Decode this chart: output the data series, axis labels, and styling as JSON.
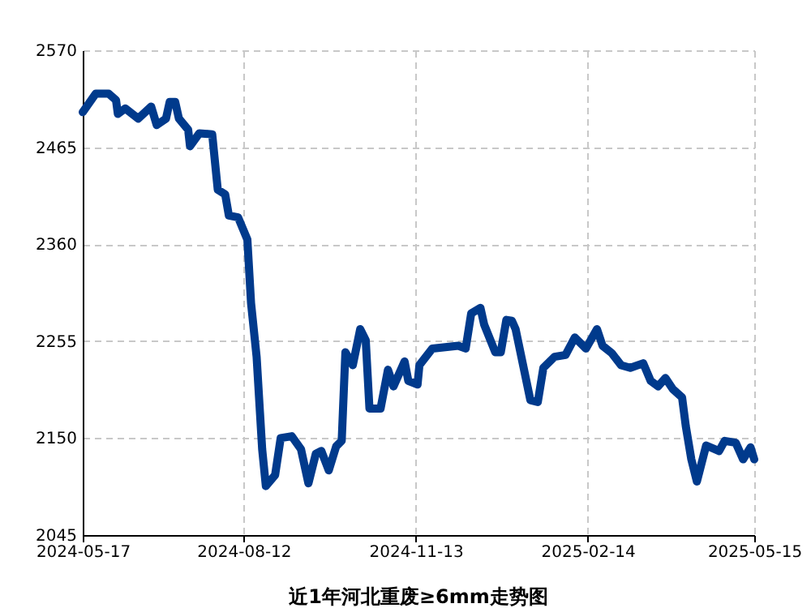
{
  "chart_data": {
    "type": "line",
    "title": "近1年河北重废≥6mm走势图",
    "x": [
      "2024-05-17",
      "2024-05-24",
      "2024-05-31",
      "2024-06-04",
      "2024-06-05",
      "2024-06-09",
      "2024-06-16",
      "2024-06-23",
      "2024-06-26",
      "2024-07-01",
      "2024-07-03",
      "2024-07-06",
      "2024-07-08",
      "2024-07-13",
      "2024-07-14",
      "2024-07-19",
      "2024-07-26",
      "2024-07-29",
      "2024-08-02",
      "2024-08-04",
      "2024-08-09",
      "2024-08-14",
      "2024-08-16",
      "2024-08-19",
      "2024-08-22",
      "2024-08-24",
      "2024-08-29",
      "2024-09-01",
      "2024-09-07",
      "2024-09-12",
      "2024-09-16",
      "2024-09-20",
      "2024-09-23",
      "2024-09-27",
      "2024-10-01",
      "2024-10-04",
      "2024-10-06",
      "2024-10-10",
      "2024-10-14",
      "2024-10-17",
      "2024-10-19",
      "2024-10-25",
      "2024-10-29",
      "2024-11-01",
      "2024-11-07",
      "2024-11-09",
      "2024-11-14",
      "2024-11-15",
      "2024-11-22",
      "2024-12-06",
      "2024-12-10",
      "2024-12-13",
      "2024-12-18",
      "2024-12-20",
      "2024-12-26",
      "2024-12-29",
      "2025-01-01",
      "2025-01-04",
      "2025-01-06",
      "2025-01-14",
      "2025-01-18",
      "2025-01-21",
      "2025-01-27",
      "2025-02-02",
      "2025-02-07",
      "2025-02-13",
      "2025-02-19",
      "2025-02-22",
      "2025-02-27",
      "2025-03-04",
      "2025-03-09",
      "2025-03-16",
      "2025-03-20",
      "2025-03-24",
      "2025-03-28",
      "2025-04-01",
      "2025-04-06",
      "2025-04-08",
      "2025-04-11",
      "2025-04-14",
      "2025-04-19",
      "2025-04-26",
      "2025-04-29",
      "2025-05-05",
      "2025-05-09",
      "2025-05-13",
      "2025-05-15"
    ],
    "series": [
      {
        "color": "#003a8c",
        "values": [
          2503,
          2523,
          2523,
          2516,
          2501,
          2507,
          2496,
          2509,
          2489,
          2496,
          2514,
          2514,
          2496,
          2484,
          2466,
          2480,
          2479,
          2419,
          2414,
          2391,
          2389,
          2365,
          2296,
          2238,
          2138,
          2098,
          2110,
          2150,
          2152,
          2138,
          2101,
          2133,
          2136,
          2115,
          2141,
          2147,
          2243,
          2229,
          2268,
          2256,
          2182,
          2182,
          2224,
          2206,
          2233,
          2212,
          2208,
          2229,
          2247,
          2250,
          2247,
          2285,
          2291,
          2273,
          2243,
          2243,
          2278,
          2277,
          2268,
          2191,
          2189,
          2226,
          2238,
          2240,
          2259,
          2247,
          2268,
          2250,
          2242,
          2229,
          2226,
          2231,
          2212,
          2206,
          2215,
          2203,
          2194,
          2163,
          2127,
          2103,
          2142,
          2136,
          2147,
          2145,
          2127,
          2140,
          2127
        ]
      }
    ],
    "xlim": [
      "2024-05-17",
      "2025-05-15"
    ],
    "xticks": [
      "2024-05-17",
      "2024-08-12",
      "2024-11-13",
      "2025-02-14",
      "2025-05-15"
    ],
    "ylim": [
      2045,
      2570
    ],
    "yticks": [
      2045,
      2150,
      2255,
      2360,
      2465,
      2570
    ],
    "grid": true,
    "line_style": "solid"
  }
}
